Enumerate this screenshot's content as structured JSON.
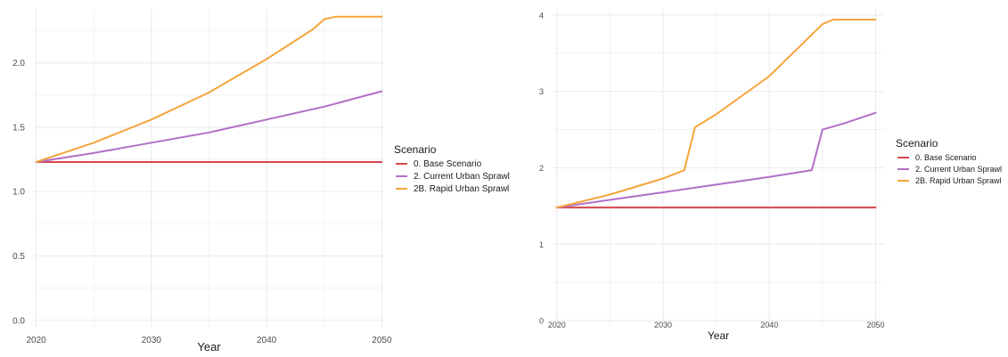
{
  "colors": {
    "base": "#d7474f",
    "current": "#b26fc7",
    "rapid": "#f4a53c",
    "grid": "#ebebeb",
    "text": "#4d4d4d",
    "title": "#1a1a1a"
  },
  "legend_labels": [
    "0. Base Scenario",
    "2. Current Urban Sprawl",
    "2B. Rapid Urban Sprawl"
  ],
  "chart_data": [
    {
      "type": "line",
      "xlabel": "Year",
      "ylabel": "",
      "xlim": [
        2019.8,
        2050.2
      ],
      "ylim": [
        -0.05,
        2.42
      ],
      "xticks": [
        2020,
        2030,
        2040,
        2050
      ],
      "xtick_labels": [
        "2020",
        "2030",
        "2040",
        "2050"
      ],
      "yticks": [
        0,
        0.5,
        1,
        1.5,
        2
      ],
      "ytick_labels": [
        "0.0",
        "0.5",
        "1.0",
        "1.5",
        "2.0"
      ],
      "grid": true,
      "legend": {
        "title": "Scenario",
        "position": "right"
      },
      "series": [
        {
          "name": "0. Base Scenario",
          "color": "#d7474f",
          "x": [
            2020,
            2025,
            2030,
            2035,
            2040,
            2045,
            2050
          ],
          "y": [
            1.23,
            1.23,
            1.23,
            1.23,
            1.23,
            1.23,
            1.23
          ]
        },
        {
          "name": "2. Current Urban Sprawl",
          "color": "#b26fc7",
          "x": [
            2020,
            2025,
            2030,
            2035,
            2040,
            2045,
            2050
          ],
          "y": [
            1.23,
            1.3,
            1.38,
            1.46,
            1.56,
            1.66,
            1.78
          ]
        },
        {
          "name": "2B. Rapid Urban Sprawl",
          "color": "#f4a53c",
          "x": [
            2020,
            2025,
            2030,
            2035,
            2040,
            2044,
            2045,
            2046,
            2050
          ],
          "y": [
            1.23,
            1.38,
            1.56,
            1.77,
            2.03,
            2.26,
            2.34,
            2.36,
            2.36
          ]
        }
      ]
    },
    {
      "type": "line",
      "xlabel": "Year",
      "ylabel": "",
      "xlim": [
        2019.6,
        2050.8
      ],
      "ylim": [
        -0.08,
        4.08
      ],
      "xticks": [
        2020,
        2030,
        2040,
        2050
      ],
      "xtick_labels": [
        "2020",
        "2030",
        "2040",
        "2050"
      ],
      "yticks": [
        0,
        1,
        2,
        3,
        4
      ],
      "ytick_labels": [
        "0",
        "1",
        "2",
        "3",
        "4"
      ],
      "grid": true,
      "legend": {
        "title": "Scenario",
        "position": "right"
      },
      "series": [
        {
          "name": "0. Base Scenario",
          "color": "#d7474f",
          "x": [
            2020,
            2030,
            2040,
            2050
          ],
          "y": [
            1.48,
            1.48,
            1.48,
            1.48
          ]
        },
        {
          "name": "2. Current Urban Sprawl",
          "color": "#b26fc7",
          "x": [
            2020,
            2025,
            2030,
            2035,
            2040,
            2044,
            2045,
            2047,
            2050
          ],
          "y": [
            1.48,
            1.58,
            1.68,
            1.78,
            1.88,
            1.97,
            2.5,
            2.58,
            2.72
          ]
        },
        {
          "name": "2B. Rapid Urban Sprawl",
          "color": "#f4a53c",
          "x": [
            2020,
            2025,
            2030,
            2032,
            2033,
            2035,
            2040,
            2045,
            2046,
            2050
          ],
          "y": [
            1.48,
            1.65,
            1.86,
            1.97,
            2.53,
            2.7,
            3.2,
            3.88,
            3.94,
            3.94
          ]
        }
      ]
    }
  ]
}
